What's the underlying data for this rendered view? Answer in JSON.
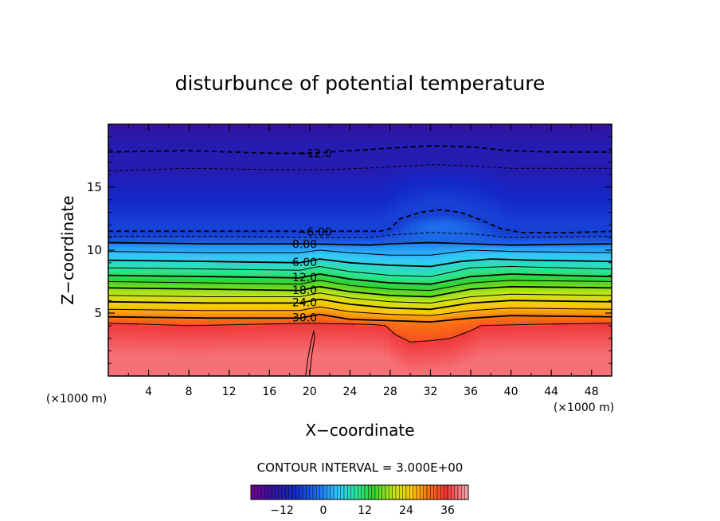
{
  "chart_data": {
    "type": "heatmap",
    "title": "disturbunce of potential temperature",
    "xlabel": "X−coordinate",
    "ylabel": "Z−coordinate",
    "x_unit_left": "(×1000 m)",
    "x_unit_right": "(×1000 m)",
    "xlim": [
      0,
      50
    ],
    "ylim": [
      0,
      20
    ],
    "x_ticks": [
      4,
      8,
      12,
      16,
      20,
      24,
      28,
      32,
      36,
      40,
      44,
      48
    ],
    "y_ticks": [
      5,
      10,
      15
    ],
    "contour_interval_text": "CONTOUR INTERVAL = 3.000E+00",
    "colorbar": {
      "range": [
        -21,
        42
      ],
      "ticks": [
        -12,
        0,
        12,
        24,
        36
      ],
      "tick_labels": [
        "−12",
        "0",
        "12",
        "24",
        "36"
      ]
    },
    "field": {
      "columns": [
        0,
        2,
        4,
        6,
        8,
        10,
        12,
        14,
        16,
        18,
        19.5,
        20.5,
        22,
        24,
        26,
        28,
        30,
        32,
        34,
        36,
        38,
        40,
        42,
        44,
        46,
        48,
        50
      ],
      "z_upper": [
        0,
        10,
        11.2,
        12,
        14.5,
        16.3,
        18.5,
        20
      ],
      "values_upper": [
        -3,
        0,
        -6,
        -6,
        -9,
        -12,
        -12,
        -15
      ],
      "upper_bump": {
        "x_start": 27,
        "x_end": 40,
        "x_peak": 33,
        "dz": 1.7
      }
    },
    "contours": [
      {
        "level": -12,
        "label": "−12.0",
        "style": "dashed",
        "label_x": 18.5,
        "points": [
          [
            0,
            17.8
          ],
          [
            8,
            17.9
          ],
          [
            16,
            17.7
          ],
          [
            20,
            17.7
          ],
          [
            24,
            17.9
          ],
          [
            28,
            18.1
          ],
          [
            32,
            18.3
          ],
          [
            36,
            18.2
          ],
          [
            40,
            17.9
          ],
          [
            44,
            17.8
          ],
          [
            50,
            17.8
          ]
        ]
      },
      {
        "level": -9,
        "label": "",
        "style": "dashed-thin",
        "points": [
          [
            0,
            16.3
          ],
          [
            8,
            16.5
          ],
          [
            16,
            16.4
          ],
          [
            22,
            16.4
          ],
          [
            28,
            16.6
          ],
          [
            32,
            16.8
          ],
          [
            36,
            16.7
          ],
          [
            40,
            16.5
          ],
          [
            50,
            16.5
          ]
        ]
      },
      {
        "level": -6,
        "label": "−6.00",
        "style": "dashed",
        "label_x": 18.5,
        "points": [
          [
            0,
            11.5
          ],
          [
            10,
            11.5
          ],
          [
            20,
            11.5
          ],
          [
            27,
            11.5
          ],
          [
            28,
            11.7
          ],
          [
            29,
            12.5
          ],
          [
            31,
            13
          ],
          [
            33,
            13.2
          ],
          [
            35,
            13
          ],
          [
            37,
            12.4
          ],
          [
            39,
            11.7
          ],
          [
            41,
            11.4
          ],
          [
            46,
            11.4
          ],
          [
            50,
            11.5
          ]
        ]
      },
      {
        "level": -3,
        "label": "",
        "style": "dashed-thin",
        "points": [
          [
            0,
            11.1
          ],
          [
            10,
            11.1
          ],
          [
            20,
            11.0
          ],
          [
            26,
            11.0
          ],
          [
            28,
            11.2
          ],
          [
            32,
            11.4
          ],
          [
            36,
            11.3
          ],
          [
            40,
            11.0
          ],
          [
            50,
            11.1
          ]
        ]
      },
      {
        "level": 0,
        "label": "0.00",
        "style": "solid",
        "label_x": 17.5,
        "points": [
          [
            0,
            10.6
          ],
          [
            10,
            10.5
          ],
          [
            20,
            10.5
          ],
          [
            26,
            10.4
          ],
          [
            28,
            10.5
          ],
          [
            32,
            10.6
          ],
          [
            36,
            10.5
          ],
          [
            40,
            10.4
          ],
          [
            50,
            10.5
          ]
        ]
      },
      {
        "level": 3,
        "label": "",
        "style": "solid-thin",
        "points": [
          [
            0,
            9.9
          ],
          [
            10,
            9.8
          ],
          [
            19,
            9.8
          ],
          [
            21,
            10.0
          ],
          [
            24,
            9.8
          ],
          [
            28,
            9.6
          ],
          [
            32,
            9.6
          ],
          [
            34,
            9.8
          ],
          [
            36,
            10.0
          ],
          [
            40,
            9.9
          ],
          [
            50,
            9.8
          ]
        ]
      },
      {
        "level": 6,
        "label": "6.00",
        "style": "solid",
        "label_x": 17.5,
        "points": [
          [
            0,
            9.2
          ],
          [
            10,
            9.1
          ],
          [
            19,
            9.0
          ],
          [
            21,
            9.3
          ],
          [
            24,
            9.0
          ],
          [
            28,
            8.8
          ],
          [
            32,
            8.7
          ],
          [
            35,
            9.1
          ],
          [
            38,
            9.3
          ],
          [
            42,
            9.2
          ],
          [
            50,
            9.1
          ]
        ]
      },
      {
        "level": 9,
        "label": "",
        "style": "solid-thin",
        "points": [
          [
            0,
            8.6
          ],
          [
            10,
            8.5
          ],
          [
            19,
            8.4
          ],
          [
            21,
            8.7
          ],
          [
            24,
            8.3
          ],
          [
            28,
            8.0
          ],
          [
            32,
            7.9
          ],
          [
            36,
            8.6
          ],
          [
            40,
            8.7
          ],
          [
            50,
            8.5
          ]
        ]
      },
      {
        "level": 12,
        "label": "12.0",
        "style": "solid",
        "label_x": 17.5,
        "points": [
          [
            0,
            8.0
          ],
          [
            10,
            7.9
          ],
          [
            19,
            7.8
          ],
          [
            21,
            8.1
          ],
          [
            24,
            7.7
          ],
          [
            28,
            7.4
          ],
          [
            32,
            7.3
          ],
          [
            36,
            7.9
          ],
          [
            40,
            8.1
          ],
          [
            50,
            7.9
          ]
        ]
      },
      {
        "level": 15,
        "label": "",
        "style": "solid-thin",
        "points": [
          [
            0,
            7.5
          ],
          [
            10,
            7.4
          ],
          [
            19,
            7.3
          ],
          [
            21,
            7.6
          ],
          [
            24,
            7.2
          ],
          [
            28,
            6.9
          ],
          [
            32,
            6.8
          ],
          [
            36,
            7.4
          ],
          [
            40,
            7.6
          ],
          [
            50,
            7.5
          ]
        ]
      },
      {
        "level": 18,
        "label": "18.0",
        "style": "solid",
        "label_x": 17.5,
        "points": [
          [
            0,
            7.0
          ],
          [
            10,
            6.9
          ],
          [
            19,
            6.8
          ],
          [
            21,
            7.1
          ],
          [
            24,
            6.7
          ],
          [
            28,
            6.4
          ],
          [
            32,
            6.3
          ],
          [
            36,
            6.9
          ],
          [
            40,
            7.1
          ],
          [
            50,
            7.0
          ]
        ]
      },
      {
        "level": 21,
        "label": "",
        "style": "solid-thin",
        "points": [
          [
            0,
            6.4
          ],
          [
            10,
            6.3
          ],
          [
            19,
            6.3
          ],
          [
            21,
            6.6
          ],
          [
            24,
            6.2
          ],
          [
            28,
            5.9
          ],
          [
            32,
            5.8
          ],
          [
            36,
            6.3
          ],
          [
            40,
            6.5
          ],
          [
            50,
            6.4
          ]
        ]
      },
      {
        "level": 24,
        "label": "24.0",
        "style": "solid",
        "label_x": 17.5,
        "points": [
          [
            0,
            5.9
          ],
          [
            10,
            5.8
          ],
          [
            19,
            5.8
          ],
          [
            21,
            6.1
          ],
          [
            24,
            5.7
          ],
          [
            28,
            5.4
          ],
          [
            32,
            5.3
          ],
          [
            36,
            5.8
          ],
          [
            40,
            6.0
          ],
          [
            50,
            5.9
          ]
        ]
      },
      {
        "level": 27,
        "label": "",
        "style": "solid-thin",
        "points": [
          [
            0,
            5.3
          ],
          [
            10,
            5.2
          ],
          [
            19,
            5.2
          ],
          [
            21,
            5.5
          ],
          [
            24,
            5.1
          ],
          [
            28,
            4.9
          ],
          [
            32,
            4.8
          ],
          [
            36,
            5.2
          ],
          [
            40,
            5.4
          ],
          [
            50,
            5.3
          ]
        ]
      },
      {
        "level": 30,
        "label": "30.0",
        "style": "solid",
        "label_x": 17.5,
        "points": [
          [
            0,
            4.7
          ],
          [
            10,
            4.6
          ],
          [
            19,
            4.6
          ],
          [
            21,
            4.9
          ],
          [
            24,
            4.5
          ],
          [
            28,
            4.4
          ],
          [
            32,
            4.3
          ],
          [
            36,
            4.6
          ],
          [
            40,
            4.8
          ],
          [
            50,
            4.7
          ]
        ]
      },
      {
        "level": 33,
        "label": "",
        "style": "solid-thin",
        "points": [
          [
            0,
            4.2
          ],
          [
            8,
            4.0
          ],
          [
            14,
            4.1
          ],
          [
            20,
            4.2
          ],
          [
            26,
            4.1
          ],
          [
            27.5,
            4.0
          ],
          [
            28.5,
            3.3
          ],
          [
            30,
            2.7
          ],
          [
            32,
            2.8
          ],
          [
            34,
            3.0
          ],
          [
            36,
            3.6
          ],
          [
            37,
            4.0
          ],
          [
            42,
            4.1
          ],
          [
            50,
            4.2
          ]
        ]
      },
      {
        "level": 33,
        "label": "",
        "style": "solid-thin",
        "closed": true,
        "points": [
          [
            19.6,
            0
          ],
          [
            19.8,
            1.3
          ],
          [
            20.1,
            2.6
          ],
          [
            20.4,
            3.6
          ],
          [
            20.5,
            3.1
          ],
          [
            20.2,
            1.6
          ],
          [
            20.0,
            0
          ]
        ]
      }
    ]
  }
}
